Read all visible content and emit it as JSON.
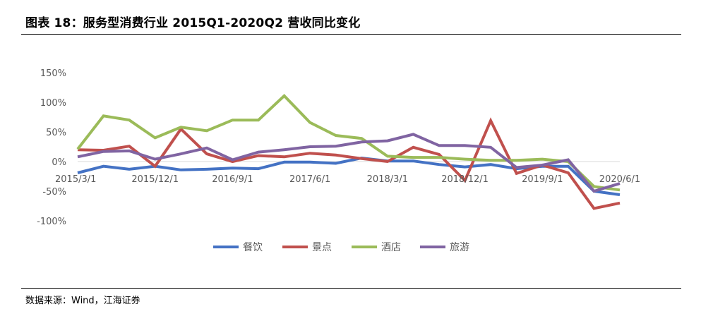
{
  "title": "图表 18：服务型消费行业 2015Q1-2020Q2 营收同比变化",
  "source": "数据来源：Wind，江海证券",
  "colors": {
    "餐饮": "#4472C4",
    "景点": "#C0504D",
    "酒店": "#9BBB59",
    "旅游": "#8064A2"
  },
  "chart_data": {
    "type": "line",
    "title": "",
    "xlabel": "",
    "ylabel": "",
    "ylim": [
      -1.0,
      1.5
    ],
    "y_ticks": [
      1.5,
      1.0,
      0.5,
      0.0,
      -0.5,
      -1.0
    ],
    "y_tick_labels": [
      "150%",
      "100%",
      "50%",
      "0%",
      "-50%",
      "-100%"
    ],
    "x": [
      "2015/3/1",
      "2015/6/1",
      "2015/9/1",
      "2015/12/1",
      "2016/3/1",
      "2016/6/1",
      "2016/9/1",
      "2016/12/1",
      "2017/3/1",
      "2017/6/1",
      "2017/9/1",
      "2017/12/1",
      "2018/3/1",
      "2018/6/1",
      "2018/9/1",
      "2018/12/1",
      "2019/3/1",
      "2019/6/1",
      "2019/9/1",
      "2019/12/1",
      "2020/3/1",
      "2020/6/1"
    ],
    "x_tick_labels": [
      {
        "index": 0,
        "label": "2015/3/1"
      },
      {
        "index": 3,
        "label": "2015/12/1"
      },
      {
        "index": 6,
        "label": "2016/9/1"
      },
      {
        "index": 9,
        "label": "2017/6/1"
      },
      {
        "index": 12,
        "label": "2018/3/1"
      },
      {
        "index": 15,
        "label": "2018/12/1"
      },
      {
        "index": 18,
        "label": "2019/9/1"
      },
      {
        "index": 21,
        "label": "2020/6/1"
      }
    ],
    "grid": false,
    "legend": "bottom",
    "series": [
      {
        "name": "餐饮",
        "values": [
          -0.19,
          -0.08,
          -0.13,
          -0.08,
          -0.14,
          -0.13,
          -0.11,
          -0.12,
          -0.01,
          -0.01,
          -0.03,
          0.06,
          0.01,
          0.01,
          -0.05,
          -0.09,
          -0.05,
          -0.12,
          -0.08,
          -0.08,
          -0.5,
          -0.56
        ]
      },
      {
        "name": "景点",
        "values": [
          0.2,
          0.19,
          0.26,
          -0.08,
          0.55,
          0.13,
          0.0,
          0.1,
          0.08,
          0.14,
          0.11,
          0.05,
          0.0,
          0.24,
          0.12,
          -0.32,
          0.69,
          -0.2,
          -0.06,
          -0.19,
          -0.79,
          -0.7
        ]
      },
      {
        "name": "酒店",
        "values": [
          0.21,
          0.77,
          0.7,
          0.4,
          0.58,
          0.52,
          0.7,
          0.7,
          1.11,
          0.66,
          0.44,
          0.39,
          0.09,
          0.07,
          0.07,
          0.04,
          0.02,
          0.02,
          0.04,
          0.0,
          -0.42,
          -0.48
        ]
      },
      {
        "name": "旅游",
        "values": [
          0.08,
          0.17,
          0.18,
          0.04,
          0.13,
          0.23,
          0.03,
          0.16,
          0.2,
          0.25,
          0.26,
          0.33,
          0.35,
          0.46,
          0.27,
          0.27,
          0.24,
          -0.1,
          -0.06,
          0.03,
          -0.5,
          -0.37
        ]
      }
    ]
  }
}
